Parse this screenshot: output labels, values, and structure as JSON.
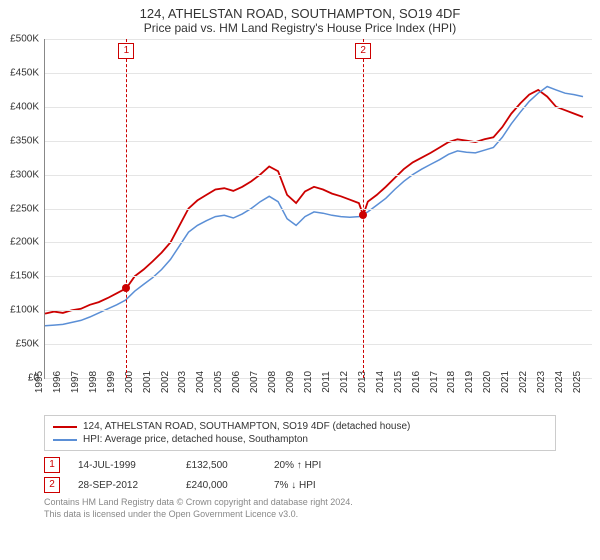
{
  "title": "124, ATHELSTAN ROAD, SOUTHAMPTON, SO19 4DF",
  "subtitle": "Price paid vs. HM Land Registry's House Price Index (HPI)",
  "chart": {
    "type": "line",
    "xlim": [
      1995,
      2025.5
    ],
    "ylim": [
      0,
      500
    ],
    "y_unit_prefix": "£",
    "y_unit_suffix": "K",
    "y_ticks": [
      0,
      50,
      100,
      150,
      200,
      250,
      300,
      350,
      400,
      450,
      500
    ],
    "x_ticks": [
      1995,
      1996,
      1997,
      1998,
      1999,
      2000,
      2001,
      2002,
      2003,
      2004,
      2005,
      2006,
      2007,
      2008,
      2009,
      2010,
      2011,
      2012,
      2013,
      2014,
      2015,
      2016,
      2017,
      2018,
      2019,
      2020,
      2021,
      2022,
      2023,
      2024,
      2025
    ],
    "grid_color": "#e5e5e5",
    "axis_color": "#888888",
    "background_color": "#ffffff",
    "label_fontsize": 10,
    "series": [
      {
        "id": "property",
        "label": "124, ATHELSTAN ROAD, SOUTHAMPTON, SO19 4DF (detached house)",
        "color": "#cc0000",
        "line_width": 1.8,
        "points": [
          [
            1995.0,
            95
          ],
          [
            1995.5,
            98
          ],
          [
            1996.0,
            96
          ],
          [
            1996.5,
            100
          ],
          [
            1997.0,
            102
          ],
          [
            1997.5,
            108
          ],
          [
            1998.0,
            112
          ],
          [
            1998.5,
            118
          ],
          [
            1999.0,
            125
          ],
          [
            1999.54,
            132.5
          ],
          [
            2000.0,
            150
          ],
          [
            2000.5,
            160
          ],
          [
            2001.0,
            172
          ],
          [
            2001.5,
            185
          ],
          [
            2002.0,
            200
          ],
          [
            2002.5,
            225
          ],
          [
            2003.0,
            250
          ],
          [
            2003.5,
            262
          ],
          [
            2004.0,
            270
          ],
          [
            2004.5,
            278
          ],
          [
            2005.0,
            280
          ],
          [
            2005.5,
            276
          ],
          [
            2006.0,
            282
          ],
          [
            2006.5,
            290
          ],
          [
            2007.0,
            300
          ],
          [
            2007.5,
            312
          ],
          [
            2008.0,
            305
          ],
          [
            2008.5,
            270
          ],
          [
            2009.0,
            258
          ],
          [
            2009.5,
            275
          ],
          [
            2010.0,
            282
          ],
          [
            2010.5,
            278
          ],
          [
            2011.0,
            272
          ],
          [
            2011.5,
            268
          ],
          [
            2012.0,
            263
          ],
          [
            2012.5,
            258
          ],
          [
            2012.74,
            240
          ],
          [
            2013.0,
            260
          ],
          [
            2013.5,
            270
          ],
          [
            2014.0,
            282
          ],
          [
            2014.5,
            295
          ],
          [
            2015.0,
            308
          ],
          [
            2015.5,
            318
          ],
          [
            2016.0,
            325
          ],
          [
            2016.5,
            332
          ],
          [
            2017.0,
            340
          ],
          [
            2017.5,
            348
          ],
          [
            2018.0,
            352
          ],
          [
            2018.5,
            350
          ],
          [
            2019.0,
            348
          ],
          [
            2019.5,
            352
          ],
          [
            2020.0,
            355
          ],
          [
            2020.5,
            370
          ],
          [
            2021.0,
            390
          ],
          [
            2021.5,
            405
          ],
          [
            2022.0,
            418
          ],
          [
            2022.5,
            425
          ],
          [
            2023.0,
            415
          ],
          [
            2023.5,
            400
          ],
          [
            2024.0,
            395
          ],
          [
            2024.5,
            390
          ],
          [
            2025.0,
            385
          ]
        ]
      },
      {
        "id": "hpi",
        "label": "HPI: Average price, detached house, Southampton",
        "color": "#5b8fd6",
        "line_width": 1.5,
        "points": [
          [
            1995.0,
            77
          ],
          [
            1995.5,
            78
          ],
          [
            1996.0,
            79
          ],
          [
            1996.5,
            82
          ],
          [
            1997.0,
            85
          ],
          [
            1997.5,
            90
          ],
          [
            1998.0,
            96
          ],
          [
            1998.5,
            102
          ],
          [
            1999.0,
            108
          ],
          [
            1999.5,
            115
          ],
          [
            2000.0,
            128
          ],
          [
            2000.5,
            138
          ],
          [
            2001.0,
            148
          ],
          [
            2001.5,
            160
          ],
          [
            2002.0,
            175
          ],
          [
            2002.5,
            195
          ],
          [
            2003.0,
            215
          ],
          [
            2003.5,
            225
          ],
          [
            2004.0,
            232
          ],
          [
            2004.5,
            238
          ],
          [
            2005.0,
            240
          ],
          [
            2005.5,
            236
          ],
          [
            2006.0,
            242
          ],
          [
            2006.5,
            250
          ],
          [
            2007.0,
            260
          ],
          [
            2007.5,
            268
          ],
          [
            2008.0,
            260
          ],
          [
            2008.5,
            235
          ],
          [
            2009.0,
            225
          ],
          [
            2009.5,
            238
          ],
          [
            2010.0,
            245
          ],
          [
            2010.5,
            243
          ],
          [
            2011.0,
            240
          ],
          [
            2011.5,
            238
          ],
          [
            2012.0,
            237
          ],
          [
            2012.5,
            238
          ],
          [
            2013.0,
            245
          ],
          [
            2013.5,
            255
          ],
          [
            2014.0,
            265
          ],
          [
            2014.5,
            278
          ],
          [
            2015.0,
            290
          ],
          [
            2015.5,
            300
          ],
          [
            2016.0,
            308
          ],
          [
            2016.5,
            315
          ],
          [
            2017.0,
            322
          ],
          [
            2017.5,
            330
          ],
          [
            2018.0,
            335
          ],
          [
            2018.5,
            333
          ],
          [
            2019.0,
            332
          ],
          [
            2019.5,
            336
          ],
          [
            2020.0,
            340
          ],
          [
            2020.5,
            355
          ],
          [
            2021.0,
            375
          ],
          [
            2021.5,
            392
          ],
          [
            2022.0,
            408
          ],
          [
            2022.5,
            420
          ],
          [
            2023.0,
            430
          ],
          [
            2023.5,
            425
          ],
          [
            2024.0,
            420
          ],
          [
            2024.5,
            418
          ],
          [
            2025.0,
            415
          ]
        ]
      }
    ],
    "sale_markers": [
      {
        "n": "1",
        "x": 1999.54,
        "y": 132.5
      },
      {
        "n": "2",
        "x": 2012.74,
        "y": 240
      }
    ]
  },
  "legend": [
    {
      "color": "#cc0000",
      "label": "124, ATHELSTAN ROAD, SOUTHAMPTON, SO19 4DF (detached house)"
    },
    {
      "color": "#5b8fd6",
      "label": "HPI: Average price, detached house, Southampton"
    }
  ],
  "sales": [
    {
      "n": "1",
      "date": "14-JUL-1999",
      "price": "£132,500",
      "delta": "20% ↑ HPI"
    },
    {
      "n": "2",
      "date": "28-SEP-2012",
      "price": "£240,000",
      "delta": "7% ↓ HPI"
    }
  ],
  "copyright": {
    "line1": "Contains HM Land Registry data © Crown copyright and database right 2024.",
    "line2": "This data is licensed under the Open Government Licence v3.0."
  }
}
